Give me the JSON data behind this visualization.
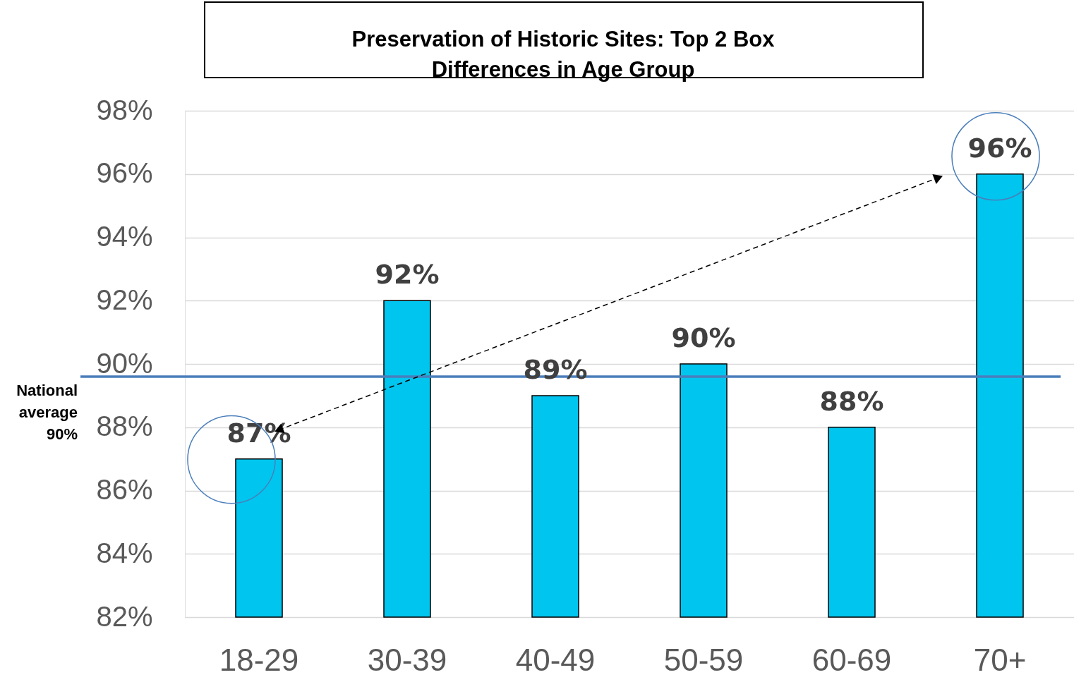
{
  "chart_data": {
    "type": "bar",
    "title": "Preservation of Historic Sites: Top 2 Box Differences in Age Group",
    "categories": [
      "18-29",
      "30-39",
      "40-49",
      "50-59",
      "60-69",
      "70+"
    ],
    "values": [
      87,
      92,
      89,
      90,
      88,
      96
    ],
    "color": "#00c5ee",
    "value_labels": [
      "87%",
      "92%",
      "89%",
      "90%",
      "88%",
      "96%"
    ],
    "ylim": [
      82,
      98
    ],
    "yticks": [
      {
        "value": 82,
        "label": "82%"
      },
      {
        "value": 84,
        "label": "84%"
      },
      {
        "value": 86,
        "label": "86%"
      },
      {
        "value": 88,
        "label": "88%"
      },
      {
        "value": 90,
        "label": "90%"
      },
      {
        "value": 92,
        "label": "92%"
      },
      {
        "value": 94,
        "label": "94%"
      },
      {
        "value": 96,
        "label": "96%"
      },
      {
        "value": 98,
        "label": "98%"
      }
    ],
    "grid": "y",
    "ref_lines": [
      {
        "axis": "y",
        "value": 89.6,
        "label": "National average 90%",
        "color": "#4a7ebb"
      }
    ]
  }
}
